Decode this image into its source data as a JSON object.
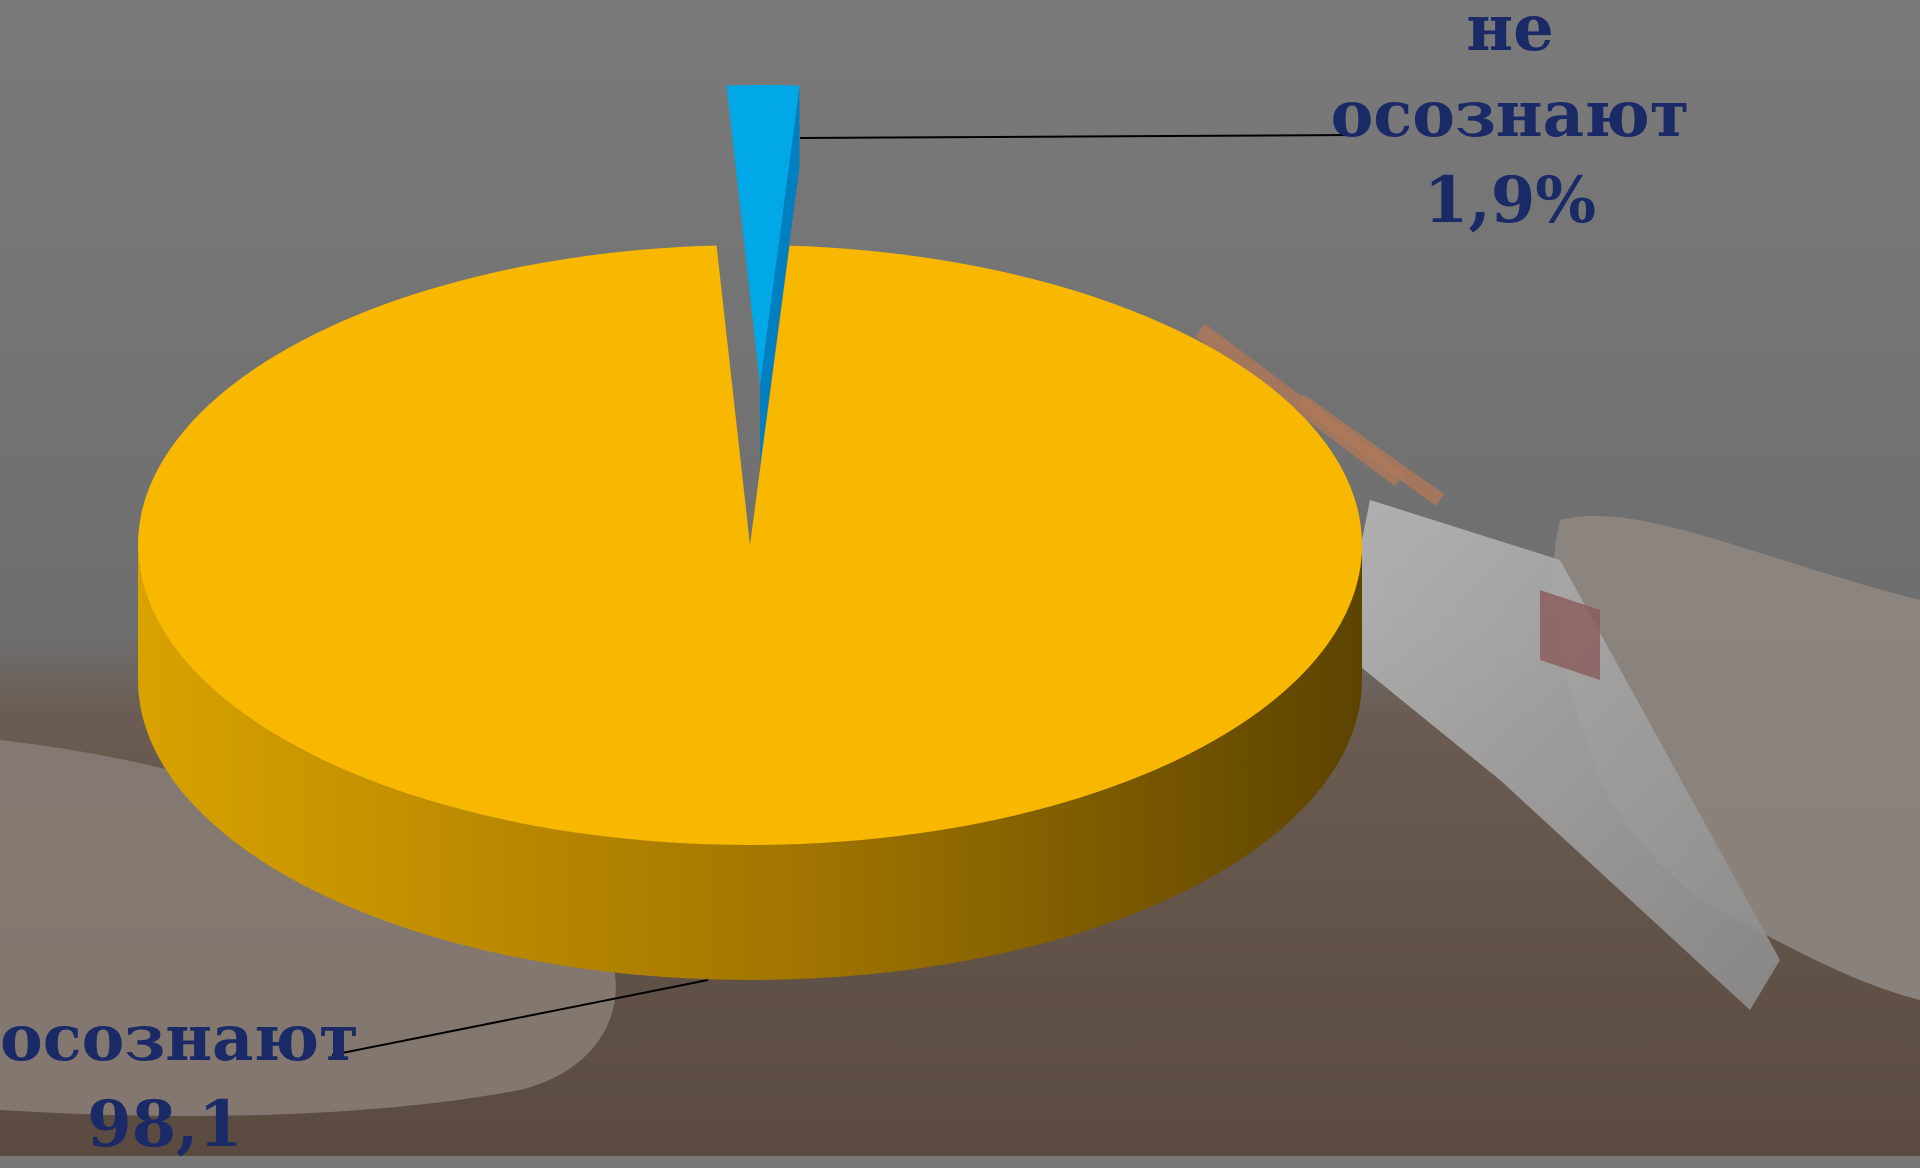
{
  "chart_data": {
    "type": "pie",
    "three_d": true,
    "slices": [
      {
        "label": "осознают",
        "value": 98.1,
        "value_label": "98,1",
        "color": "#f8b800"
      },
      {
        "label": "не осознают",
        "value": 1.9,
        "value_label": "1,9%",
        "color": "#00a8e8"
      }
    ],
    "legend": "none"
  },
  "labels": {
    "small": {
      "line1": "не",
      "line2": "осознают",
      "value": "1,9%"
    },
    "large": {
      "line1": "осознают",
      "value": "98,1"
    }
  },
  "colors": {
    "background": "#777777",
    "label_text": "#1a2a66",
    "slice_main": "#f8b800",
    "slice_minor": "#00a8e8"
  }
}
